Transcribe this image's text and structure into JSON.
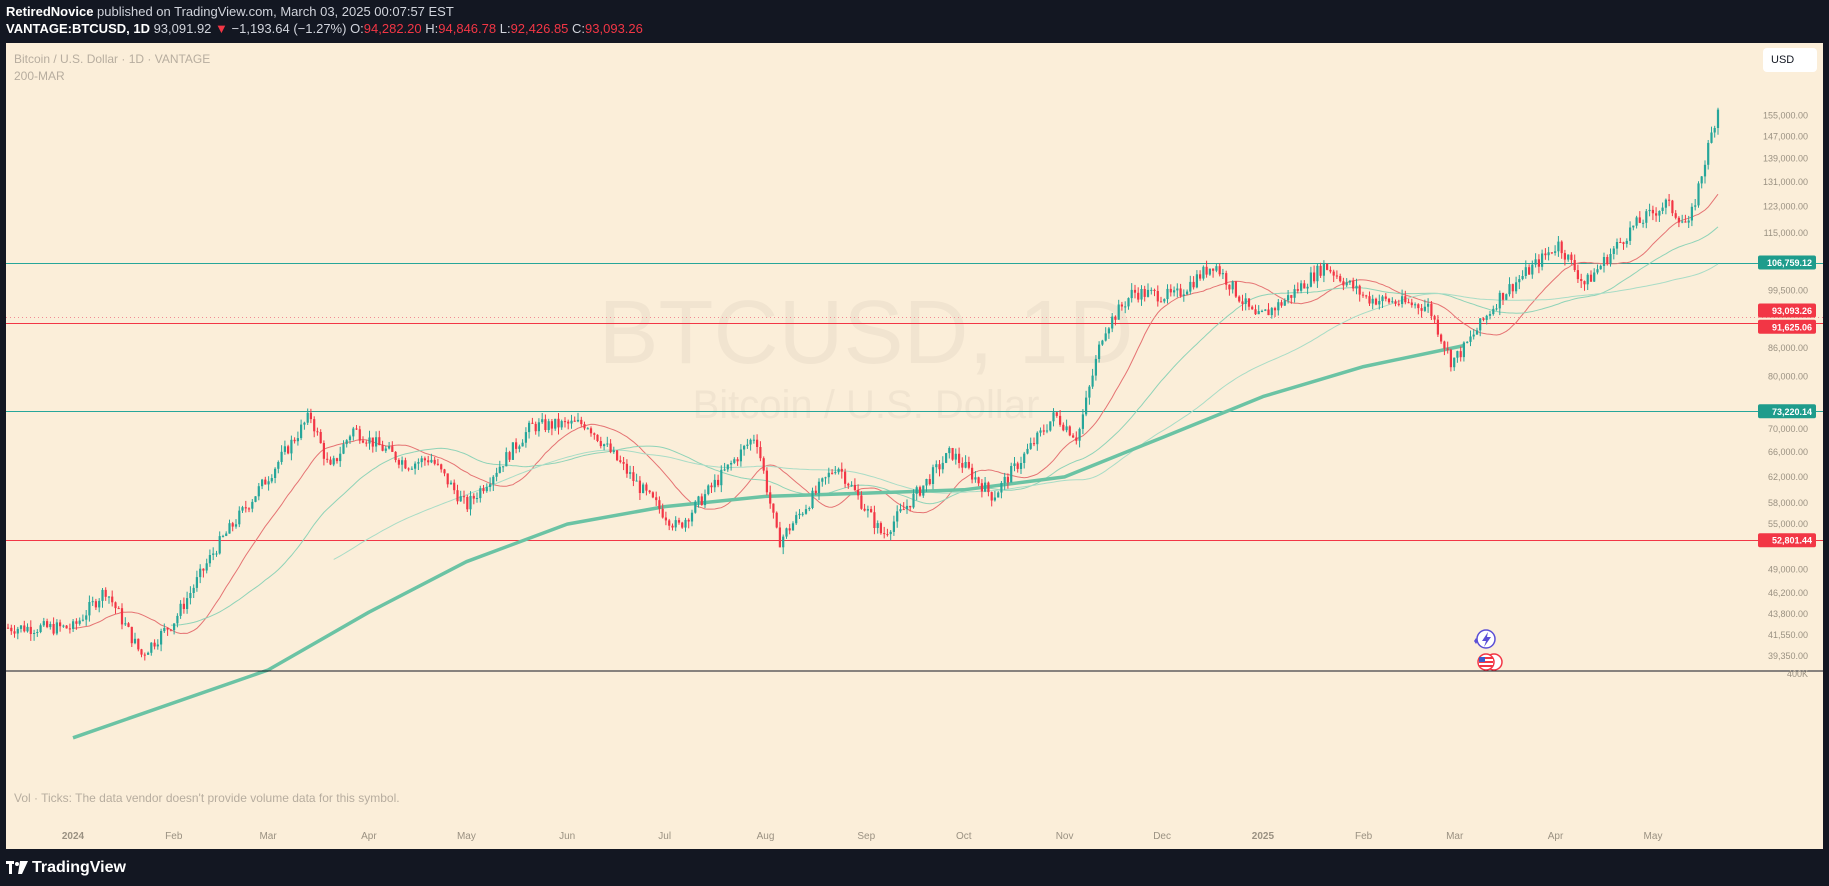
{
  "header": {
    "author": "RetiredNovice",
    "published": " published on TradingView.com, March 03, 2025 00:07:57 EST",
    "symbol": "VANTAGE:BTCUSD, 1D",
    "last": " 93,091.92 ",
    "arrow": "▼",
    "change": " −1,193.64 (−1.27%) ",
    "o_label": "O:",
    "o_value": "94,282.20",
    "h_label": " H:",
    "h_value": "94,846.78",
    "l_label": " L:",
    "l_value": "92,426.85",
    "c_label": " C:",
    "c_value": "93,093.26"
  },
  "legend": {
    "title": "Bitcoin / U.S. Dollar · 1D · VANTAGE",
    "indicator": "200-MAR"
  },
  "watermark": {
    "main": "BTCUSD, 1D",
    "sub": "Bitcoin / U.S. Dollar"
  },
  "currency_button": "USD",
  "volume_note": "Vol · Ticks: The data vendor doesn't provide volume data for this symbol.",
  "footer": {
    "brand": "TradingView"
  },
  "colors": {
    "background": "#fbeed9",
    "up": "#26a69a",
    "down": "#f23645",
    "ma200": "#6bc3a4",
    "support_line": "#f23645",
    "resistance_line": "#26a69a"
  },
  "chart_data": {
    "type": "candlestick",
    "title": "Bitcoin / U.S. Dollar · 1D · VANTAGE",
    "y_scale": "log",
    "ylim": [
      38000,
      162000
    ],
    "x_ticks": [
      "2024",
      "Feb",
      "Mar",
      "Apr",
      "May",
      "Jun",
      "Jul",
      "Aug",
      "Sep",
      "Oct",
      "Nov",
      "Dec",
      "2025",
      "Feb",
      "Mar",
      "Apr",
      "May"
    ],
    "y_ticks": [
      "155,000.00",
      "147,000.00",
      "139,000.00",
      "131,000.00",
      "123,000.00",
      "115,000.00",
      "99,500.00",
      "86,000.00",
      "80,000.00",
      "70,000.00",
      "66,000.00",
      "62,000.00",
      "58,000.00",
      "55,000.00",
      "49,000.00",
      "46,200.00",
      "43,800.00",
      "41,550.00",
      "39,350.00"
    ],
    "volume_pane_label": "400K",
    "horizontal_levels": [
      {
        "label": "106,759.12",
        "value": 106759.12,
        "color": "#26a69a"
      },
      {
        "label": "93,093.26",
        "value": 93093.26,
        "color": "#f23645",
        "style": "dotted"
      },
      {
        "label": "91,625.06",
        "value": 91625.06,
        "color": "#f23645"
      },
      {
        "label": "73,220.14",
        "value": 73220.14,
        "color": "#26a69a"
      },
      {
        "label": "52,801.44",
        "value": 52801.44,
        "color": "#f23645"
      }
    ],
    "close_path": [
      [
        "2024-01-01",
        42300
      ],
      [
        "2024-01-11",
        46600
      ],
      [
        "2024-01-22",
        39500
      ],
      [
        "2024-02-01",
        43000
      ],
      [
        "2024-02-14",
        51800
      ],
      [
        "2024-03-01",
        62000
      ],
      [
        "2024-03-14",
        72500
      ],
      [
        "2024-03-20",
        63000
      ],
      [
        "2024-03-27",
        70000
      ],
      [
        "2024-04-13",
        64000
      ],
      [
        "2024-04-20",
        65000
      ],
      [
        "2024-05-01",
        57500
      ],
      [
        "2024-05-21",
        70500
      ],
      [
        "2024-06-07",
        71000
      ],
      [
        "2024-06-24",
        60000
      ],
      [
        "2024-07-05",
        54500
      ],
      [
        "2024-07-29",
        69000
      ],
      [
        "2024-08-05",
        52500
      ],
      [
        "2024-08-23",
        64000
      ],
      [
        "2024-09-06",
        53500
      ],
      [
        "2024-09-27",
        66000
      ],
      [
        "2024-10-10",
        59000
      ],
      [
        "2024-10-29",
        72500
      ],
      [
        "2024-11-05",
        68500
      ],
      [
        "2024-11-13",
        90000
      ],
      [
        "2024-11-22",
        99000
      ],
      [
        "2024-12-05",
        98000
      ],
      [
        "2024-12-17",
        106500
      ],
      [
        "2024-12-30",
        92500
      ],
      [
        "2025-01-07",
        96500
      ],
      [
        "2025-01-20",
        106000
      ],
      [
        "2025-02-02",
        97500
      ],
      [
        "2025-02-21",
        95500
      ],
      [
        "2025-02-28",
        83000
      ],
      [
        "2025-03-04",
        86000
      ],
      [
        "2025-03-15",
        98000
      ],
      [
        "2025-04-02",
        112000
      ],
      [
        "2025-04-10",
        101000
      ],
      [
        "2025-04-25",
        117000
      ],
      [
        "2025-05-05",
        124000
      ],
      [
        "2025-05-12",
        117000
      ],
      [
        "2025-05-21",
        158000
      ]
    ],
    "moving_average_200": [
      [
        "2024-01-01",
        32000
      ],
      [
        "2024-03-01",
        38000
      ],
      [
        "2024-04-01",
        44000
      ],
      [
        "2024-05-01",
        50000
      ],
      [
        "2024-06-01",
        55000
      ],
      [
        "2024-07-01",
        57500
      ],
      [
        "2024-08-01",
        59000
      ],
      [
        "2024-09-01",
        59500
      ],
      [
        "2024-10-01",
        60000
      ],
      [
        "2024-11-01",
        62000
      ],
      [
        "2024-12-01",
        68500
      ],
      [
        "2025-01-01",
        76000
      ],
      [
        "2025-02-01",
        82000
      ],
      [
        "2025-03-04",
        86500
      ]
    ],
    "event_markers": [
      {
        "date": "2025-03-04",
        "icon": "lightning-icon"
      },
      {
        "date": "2025-03-04",
        "icon": "us-flag-icon"
      }
    ]
  }
}
